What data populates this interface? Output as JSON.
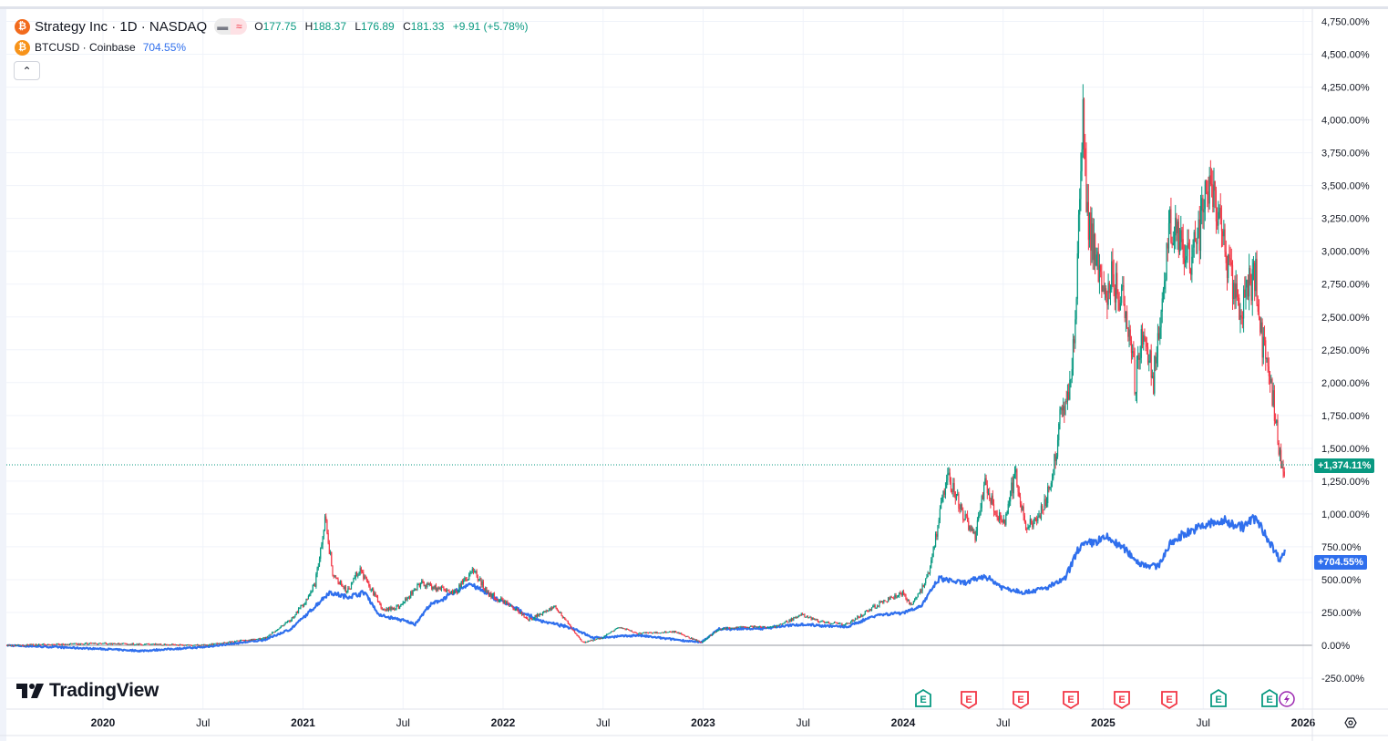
{
  "legend": {
    "main_symbol": "Strategy Inc · 1D · NASDAQ",
    "main_icon": "bitcoin-icon",
    "ohlc": {
      "o_label": "O",
      "o": "177.75",
      "h_label": "H",
      "h": "188.37",
      "l_label": "L",
      "l": "176.89",
      "c_label": "C",
      "c": "181.33",
      "change": "+9.91 (+5.78%)"
    },
    "compare_symbol": "BTCUSD · Coinbase",
    "compare_value": "704.55%",
    "collapse_icon": "chevron-up-icon"
  },
  "brand": "TradingView",
  "colors": {
    "up": "#089981",
    "down": "#f23645",
    "btc_line": "#2f6fed",
    "main_icon": "#f7931a",
    "compare_icon": "#f7931a",
    "earnings_green": "#089981",
    "earnings_red": "#f23645",
    "dividend_purple": "#9c27b0"
  },
  "price_tags": {
    "main": "+1,374.11%",
    "compare": "+704.55%"
  },
  "earnings_markers": [
    {
      "label": "E",
      "type": "green"
    },
    {
      "label": "E",
      "type": "red"
    },
    {
      "label": "E",
      "type": "red"
    },
    {
      "label": "E",
      "type": "red"
    },
    {
      "label": "E",
      "type": "red"
    },
    {
      "label": "E",
      "type": "red"
    },
    {
      "label": "E",
      "type": "green"
    },
    {
      "label": "E",
      "type": "green"
    }
  ],
  "chart_data": {
    "type": "line",
    "title": "Strategy Inc · 1D · NASDAQ vs BTCUSD · Coinbase (percent scale)",
    "y_axis": {
      "unit": "%",
      "range": [
        -350,
        4850
      ],
      "ticks": [
        "4,750.00%",
        "4,500.00%",
        "4,250.00%",
        "4,000.00%",
        "3,750.00%",
        "3,500.00%",
        "3,250.00%",
        "3,000.00%",
        "2,750.00%",
        "2,500.00%",
        "2,250.00%",
        "2,000.00%",
        "1,750.00%",
        "1,500.00%",
        "1,250.00%",
        "1,000.00%",
        "750.00%",
        "500.00%",
        "250.00%",
        "0.00%",
        "-250.00%"
      ],
      "tick_values": [
        4750,
        4500,
        4250,
        4000,
        3750,
        3500,
        3250,
        3000,
        2750,
        2500,
        2250,
        2000,
        1750,
        1500,
        1250,
        1000,
        750,
        500,
        250,
        0,
        -250
      ]
    },
    "x_axis": {
      "range": [
        2019.48,
        2026.05
      ],
      "ticks": [
        "2020",
        "Jul",
        "2021",
        "Jul",
        "2022",
        "Jul",
        "2023",
        "Jul",
        "2024",
        "Jul",
        "2025",
        "Jul",
        "2026"
      ],
      "tick_values": [
        2020,
        2020.5,
        2021,
        2021.5,
        2022,
        2022.5,
        2023,
        2023.5,
        2024,
        2024.5,
        2025,
        2025.5,
        2026
      ]
    },
    "grid": true,
    "series": [
      {
        "name": "Strategy Inc",
        "style": "candles",
        "x": [
          2019.52,
          2020.0,
          2020.5,
          2020.81,
          2020.94,
          2021.01,
          2021.06,
          2021.11,
          2021.15,
          2021.22,
          2021.28,
          2021.35,
          2021.4,
          2021.49,
          2021.58,
          2021.67,
          2021.76,
          2021.85,
          2021.92,
          2022.04,
          2022.13,
          2022.26,
          2022.36,
          2022.4,
          2022.49,
          2022.58,
          2022.67,
          2022.86,
          2022.99,
          2023.08,
          2023.22,
          2023.36,
          2023.49,
          2023.59,
          2023.72,
          2023.86,
          2024.0,
          2024.04,
          2024.13,
          2024.18,
          2024.22,
          2024.29,
          2024.36,
          2024.41,
          2024.5,
          2024.56,
          2024.61,
          2024.68,
          2024.75,
          2024.79,
          2024.84,
          2024.87,
          2024.9,
          2024.92,
          2024.95,
          2025.0,
          2025.04,
          2025.11,
          2025.16,
          2025.2,
          2025.25,
          2025.29,
          2025.34,
          2025.41,
          2025.48,
          2025.53,
          2025.57,
          2025.61,
          2025.66,
          2025.7,
          2025.76,
          2025.79,
          2025.84,
          2025.87,
          2025.9,
          2025.91
        ],
        "y": [
          0,
          14,
          0,
          56,
          194,
          333,
          472,
          958,
          542,
          403,
          576,
          403,
          264,
          299,
          472,
          438,
          403,
          576,
          403,
          299,
          194,
          299,
          90,
          21,
          56,
          139,
          90,
          104,
          21,
          125,
          139,
          139,
          229,
          181,
          160,
          299,
          403,
          299,
          542,
          958,
          1306,
          1028,
          819,
          1236,
          889,
          1306,
          889,
          958,
          1306,
          1792,
          2000,
          2833,
          4083,
          3319,
          3042,
          2625,
          2833,
          2556,
          2000,
          2417,
          2000,
          2625,
          3250,
          2903,
          3111,
          3597,
          3250,
          3042,
          2625,
          2625,
          2833,
          2347,
          2000,
          1583,
          1306,
          1374
        ]
      },
      {
        "name": "BTCUSD",
        "style": "line",
        "x": [
          2019.52,
          2020.0,
          2020.19,
          2020.5,
          2020.81,
          2020.94,
          2021.03,
          2021.13,
          2021.22,
          2021.31,
          2021.38,
          2021.49,
          2021.56,
          2021.63,
          2021.76,
          2021.83,
          2021.95,
          2022.04,
          2022.17,
          2022.36,
          2022.45,
          2022.67,
          2022.99,
          2023.08,
          2023.27,
          2023.49,
          2023.72,
          2023.86,
          2024.0,
          2024.09,
          2024.18,
          2024.31,
          2024.41,
          2024.5,
          2024.61,
          2024.72,
          2024.81,
          2024.88,
          2024.95,
          2025.02,
          2025.11,
          2025.18,
          2025.27,
          2025.34,
          2025.41,
          2025.53,
          2025.61,
          2025.7,
          2025.76,
          2025.82,
          2025.88,
          2025.91
        ],
        "y": [
          0,
          -28,
          -42,
          -14,
          42,
          125,
          250,
          403,
          368,
          403,
          229,
          194,
          160,
          299,
          403,
          472,
          368,
          299,
          194,
          125,
          56,
          76,
          21,
          125,
          125,
          160,
          139,
          229,
          250,
          299,
          507,
          472,
          528,
          438,
          403,
          438,
          507,
          750,
          785,
          819,
          729,
          625,
          597,
          778,
          854,
          924,
          944,
          903,
          972,
          819,
          660,
          705
        ]
      }
    ]
  }
}
